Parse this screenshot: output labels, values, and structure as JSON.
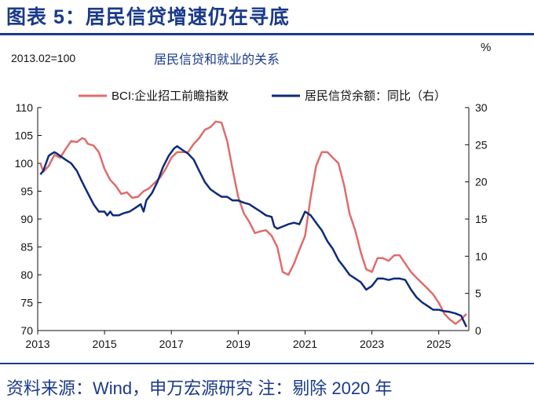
{
  "figure_title": "图表 5：居民信贷增速仍在寻底",
  "note": "2013.02=100",
  "pct_unit": "%",
  "source": "资料来源：Wind，申万宏源研究  注：剔除 2020 年",
  "colors": {
    "bci": "#e06c6c",
    "credit": "#0d2a7a",
    "title": "#1a3a8a"
  },
  "chart_data": {
    "type": "line",
    "title": "居民信贷和就业的关系",
    "xlabel": "",
    "ylabel_left": "",
    "ylabel_right": "%",
    "x_ticks": [
      "2013",
      "2015",
      "2017",
      "2019",
      "2021",
      "2023",
      "2025"
    ],
    "x_range": [
      2013,
      2025.9
    ],
    "y_left_range": [
      70,
      110
    ],
    "y_left_ticks": [
      "70",
      "75",
      "80",
      "85",
      "90",
      "95",
      "100",
      "105",
      "110"
    ],
    "y_right_range": [
      0,
      30
    ],
    "y_right_ticks": [
      "0",
      "5",
      "10",
      "15",
      "20",
      "25",
      "30"
    ],
    "legend_position": "top",
    "grid": false,
    "series": [
      {
        "name": "BCI:企业招工前瞻指数",
        "axis": "left",
        "points": [
          [
            2013.08,
            100.0
          ],
          [
            2013.17,
            98.5
          ],
          [
            2013.33,
            99.5
          ],
          [
            2013.5,
            101.5
          ],
          [
            2013.67,
            101.0
          ],
          [
            2013.83,
            102.5
          ],
          [
            2014.0,
            104.0
          ],
          [
            2014.17,
            103.8
          ],
          [
            2014.33,
            104.5
          ],
          [
            2014.42,
            104.3
          ],
          [
            2014.5,
            103.5
          ],
          [
            2014.67,
            103.2
          ],
          [
            2014.83,
            102.0
          ],
          [
            2015.0,
            99.0
          ],
          [
            2015.17,
            97.0
          ],
          [
            2015.33,
            96.0
          ],
          [
            2015.5,
            94.5
          ],
          [
            2015.67,
            94.8
          ],
          [
            2015.83,
            93.8
          ],
          [
            2016.0,
            94.0
          ],
          [
            2016.17,
            95.0
          ],
          [
            2016.33,
            95.5
          ],
          [
            2016.5,
            96.5
          ],
          [
            2016.67,
            97.5
          ],
          [
            2016.83,
            99.0
          ],
          [
            2017.0,
            101.0
          ],
          [
            2017.17,
            102.0
          ],
          [
            2017.33,
            102.0
          ],
          [
            2017.5,
            102.0
          ],
          [
            2017.67,
            103.5
          ],
          [
            2017.83,
            104.5
          ],
          [
            2018.0,
            106.0
          ],
          [
            2018.17,
            106.5
          ],
          [
            2018.33,
            107.5
          ],
          [
            2018.5,
            107.3
          ],
          [
            2018.67,
            104.0
          ],
          [
            2018.83,
            99.0
          ],
          [
            2019.0,
            94.0
          ],
          [
            2019.17,
            91.0
          ],
          [
            2019.33,
            89.5
          ],
          [
            2019.5,
            87.5
          ],
          [
            2019.67,
            87.8
          ],
          [
            2019.83,
            88.0
          ],
          [
            2020.0,
            87.0
          ],
          [
            2020.17,
            85.0
          ],
          [
            2020.33,
            80.5
          ],
          [
            2020.5,
            80.0
          ],
          [
            2020.67,
            82.0
          ],
          [
            2020.83,
            84.5
          ],
          [
            2021.0,
            87.0
          ],
          [
            2021.17,
            94.0
          ],
          [
            2021.33,
            99.5
          ],
          [
            2021.5,
            102.0
          ],
          [
            2021.67,
            102.0
          ],
          [
            2021.83,
            101.0
          ],
          [
            2022.0,
            100.0
          ],
          [
            2022.17,
            96.0
          ],
          [
            2022.33,
            91.0
          ],
          [
            2022.5,
            88.0
          ],
          [
            2022.67,
            84.0
          ],
          [
            2022.83,
            81.0
          ],
          [
            2023.0,
            80.5
          ],
          [
            2023.17,
            83.0
          ],
          [
            2023.33,
            83.0
          ],
          [
            2023.5,
            82.5
          ],
          [
            2023.67,
            83.5
          ],
          [
            2023.83,
            83.5
          ],
          [
            2024.0,
            82.0
          ],
          [
            2024.17,
            80.5
          ],
          [
            2024.33,
            79.5
          ],
          [
            2024.5,
            78.5
          ],
          [
            2024.67,
            77.5
          ],
          [
            2024.83,
            76.5
          ],
          [
            2025.0,
            75.0
          ],
          [
            2025.17,
            73.0
          ],
          [
            2025.33,
            72.0
          ],
          [
            2025.5,
            71.2
          ],
          [
            2025.67,
            72.0
          ],
          [
            2025.83,
            73.0
          ]
        ]
      },
      {
        "name": "居民信贷余额：同比（右）",
        "axis": "right",
        "points": [
          [
            2013.08,
            21.0
          ],
          [
            2013.17,
            21.5
          ],
          [
            2013.25,
            22.5
          ],
          [
            2013.33,
            23.5
          ],
          [
            2013.42,
            23.8
          ],
          [
            2013.5,
            24.0
          ],
          [
            2013.58,
            23.8
          ],
          [
            2013.67,
            23.5
          ],
          [
            2013.83,
            23.0
          ],
          [
            2014.0,
            22.5
          ],
          [
            2014.17,
            21.5
          ],
          [
            2014.33,
            20.0
          ],
          [
            2014.5,
            18.5
          ],
          [
            2014.67,
            17.0
          ],
          [
            2014.83,
            16.0
          ],
          [
            2015.0,
            16.0
          ],
          [
            2015.08,
            15.5
          ],
          [
            2015.17,
            16.0
          ],
          [
            2015.25,
            15.5
          ],
          [
            2015.42,
            15.5
          ],
          [
            2015.58,
            15.8
          ],
          [
            2015.75,
            16.0
          ],
          [
            2015.92,
            16.5
          ],
          [
            2016.08,
            17.0
          ],
          [
            2016.17,
            16.0
          ],
          [
            2016.25,
            17.5
          ],
          [
            2016.42,
            18.5
          ],
          [
            2016.58,
            20.0
          ],
          [
            2016.75,
            22.0
          ],
          [
            2016.92,
            23.5
          ],
          [
            2017.08,
            24.5
          ],
          [
            2017.17,
            24.8
          ],
          [
            2017.33,
            24.3
          ],
          [
            2017.5,
            23.8
          ],
          [
            2017.67,
            23.0
          ],
          [
            2017.83,
            21.5
          ],
          [
            2018.0,
            20.0
          ],
          [
            2018.17,
            19.0
          ],
          [
            2018.33,
            18.5
          ],
          [
            2018.5,
            18.0
          ],
          [
            2018.67,
            18.0
          ],
          [
            2018.83,
            17.5
          ],
          [
            2019.0,
            17.5
          ],
          [
            2019.17,
            17.2
          ],
          [
            2019.33,
            17.0
          ],
          [
            2019.5,
            16.5
          ],
          [
            2019.67,
            16.0
          ],
          [
            2019.83,
            15.5
          ],
          [
            2020.0,
            15.3
          ],
          [
            2020.08,
            14.0
          ],
          [
            2020.17,
            13.7
          ],
          [
            2020.33,
            14.0
          ],
          [
            2020.5,
            14.3
          ],
          [
            2020.67,
            14.5
          ],
          [
            2020.83,
            14.3
          ],
          [
            2021.0,
            16.0
          ],
          [
            2021.17,
            15.5
          ],
          [
            2021.33,
            14.5
          ],
          [
            2021.5,
            13.5
          ],
          [
            2021.67,
            12.0
          ],
          [
            2021.83,
            11.0
          ],
          [
            2022.0,
            9.5
          ],
          [
            2022.17,
            8.5
          ],
          [
            2022.33,
            7.5
          ],
          [
            2022.5,
            7.0
          ],
          [
            2022.67,
            6.5
          ],
          [
            2022.83,
            5.5
          ],
          [
            2023.0,
            6.0
          ],
          [
            2023.17,
            7.0
          ],
          [
            2023.33,
            7.0
          ],
          [
            2023.5,
            6.8
          ],
          [
            2023.67,
            7.0
          ],
          [
            2023.83,
            7.0
          ],
          [
            2024.0,
            6.8
          ],
          [
            2024.17,
            5.5
          ],
          [
            2024.33,
            4.5
          ],
          [
            2024.5,
            3.8
          ],
          [
            2024.67,
            3.3
          ],
          [
            2024.83,
            2.8
          ],
          [
            2025.0,
            2.8
          ],
          [
            2025.17,
            2.6
          ],
          [
            2025.33,
            2.5
          ],
          [
            2025.5,
            2.3
          ],
          [
            2025.67,
            2.0
          ],
          [
            2025.83,
            0.5
          ]
        ]
      }
    ]
  }
}
